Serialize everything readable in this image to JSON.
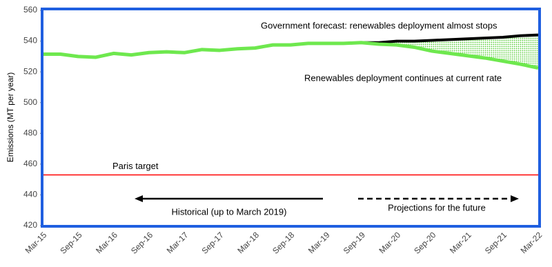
{
  "chart_data": {
    "type": "line",
    "y_label": "Emissions (MT per year)",
    "categories": [
      "Mar-15",
      null,
      "Sep-15",
      null,
      "Mar-16",
      null,
      "Sep-16",
      null,
      "Mar-17",
      null,
      "Sep-17",
      null,
      "Mar-18",
      null,
      "Sep-18",
      null,
      "Mar-19",
      null,
      "Sep-19",
      null,
      "Mar-20",
      null,
      "Sep-20",
      null,
      "Mar-21",
      null,
      "Sep-21",
      null,
      "Mar-22"
    ],
    "series": [
      {
        "color": "#6ee84e",
        "values": [
          531.5,
          531.5,
          530,
          529.5,
          532,
          531,
          532.5,
          533,
          532.5,
          534.5,
          534,
          535,
          535.5,
          537.5,
          537.5,
          538.5,
          538.5,
          538.5,
          539,
          538,
          537.5,
          536,
          533.5,
          532,
          530.5,
          529,
          527,
          525,
          522.5
        ]
      },
      {
        "color": "#000000",
        "values": [
          null,
          null,
          null,
          null,
          null,
          null,
          null,
          null,
          null,
          null,
          null,
          null,
          null,
          null,
          null,
          null,
          null,
          null,
          539,
          539,
          540,
          540,
          540.5,
          541,
          541.5,
          542,
          542.5,
          543.5,
          544
        ]
      }
    ],
    "reference_lines": [
      {
        "label": "Paris target",
        "value": 453,
        "color": "#ff0000"
      }
    ],
    "annotations": [
      "Government forecast: renewables deployment almost stops",
      "Renewables deployment continues at current rate",
      "Historical (up to March 2019)",
      "Projections for the future"
    ],
    "ylim": [
      420,
      560
    ],
    "yticks": [
      420,
      440,
      460,
      480,
      500,
      520,
      540,
      560
    ],
    "frame_color": "#1f5fe0"
  }
}
